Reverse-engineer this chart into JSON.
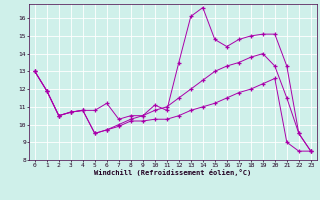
{
  "xlabel": "Windchill (Refroidissement éolien,°C)",
  "bg_color": "#cff0ea",
  "line_color": "#aa00aa",
  "xlim": [
    -0.5,
    23.5
  ],
  "ylim": [
    8,
    16.8
  ],
  "yticks": [
    8,
    9,
    10,
    11,
    12,
    13,
    14,
    15,
    16
  ],
  "xticks": [
    0,
    1,
    2,
    3,
    4,
    5,
    6,
    7,
    8,
    9,
    10,
    11,
    12,
    13,
    14,
    15,
    16,
    17,
    18,
    19,
    20,
    21,
    22,
    23
  ],
  "series": [
    {
      "x": [
        0,
        1,
        2,
        3,
        4,
        5,
        6,
        7,
        8,
        9,
        10,
        11,
        12,
        13,
        14,
        15,
        16,
        17,
        18,
        19,
        20,
        21,
        22,
        23
      ],
      "y": [
        13.0,
        11.9,
        10.5,
        10.7,
        10.8,
        9.5,
        9.7,
        10.0,
        10.3,
        10.5,
        11.1,
        10.8,
        13.5,
        16.1,
        16.6,
        14.8,
        14.4,
        14.8,
        15.0,
        15.1,
        15.1,
        13.3,
        9.5,
        8.5
      ]
    },
    {
      "x": [
        0,
        1,
        2,
        3,
        4,
        5,
        6,
        7,
        8,
        9,
        10,
        11,
        12,
        13,
        14,
        15,
        16,
        17,
        18,
        19,
        20,
        21,
        22,
        23
      ],
      "y": [
        13.0,
        11.9,
        10.5,
        10.7,
        10.8,
        10.8,
        11.2,
        10.3,
        10.5,
        10.5,
        10.8,
        11.0,
        11.5,
        12.0,
        12.5,
        13.0,
        13.3,
        13.5,
        13.8,
        14.0,
        13.3,
        11.5,
        9.5,
        8.5
      ]
    },
    {
      "x": [
        0,
        1,
        2,
        3,
        4,
        5,
        6,
        7,
        8,
        9,
        10,
        11,
        12,
        13,
        14,
        15,
        16,
        17,
        18,
        19,
        20,
        21,
        22,
        23
      ],
      "y": [
        13.0,
        11.9,
        10.5,
        10.7,
        10.8,
        9.5,
        9.7,
        9.9,
        10.2,
        10.2,
        10.3,
        10.3,
        10.5,
        10.8,
        11.0,
        11.2,
        11.5,
        11.8,
        12.0,
        12.3,
        12.6,
        9.0,
        8.5,
        8.5
      ]
    }
  ]
}
